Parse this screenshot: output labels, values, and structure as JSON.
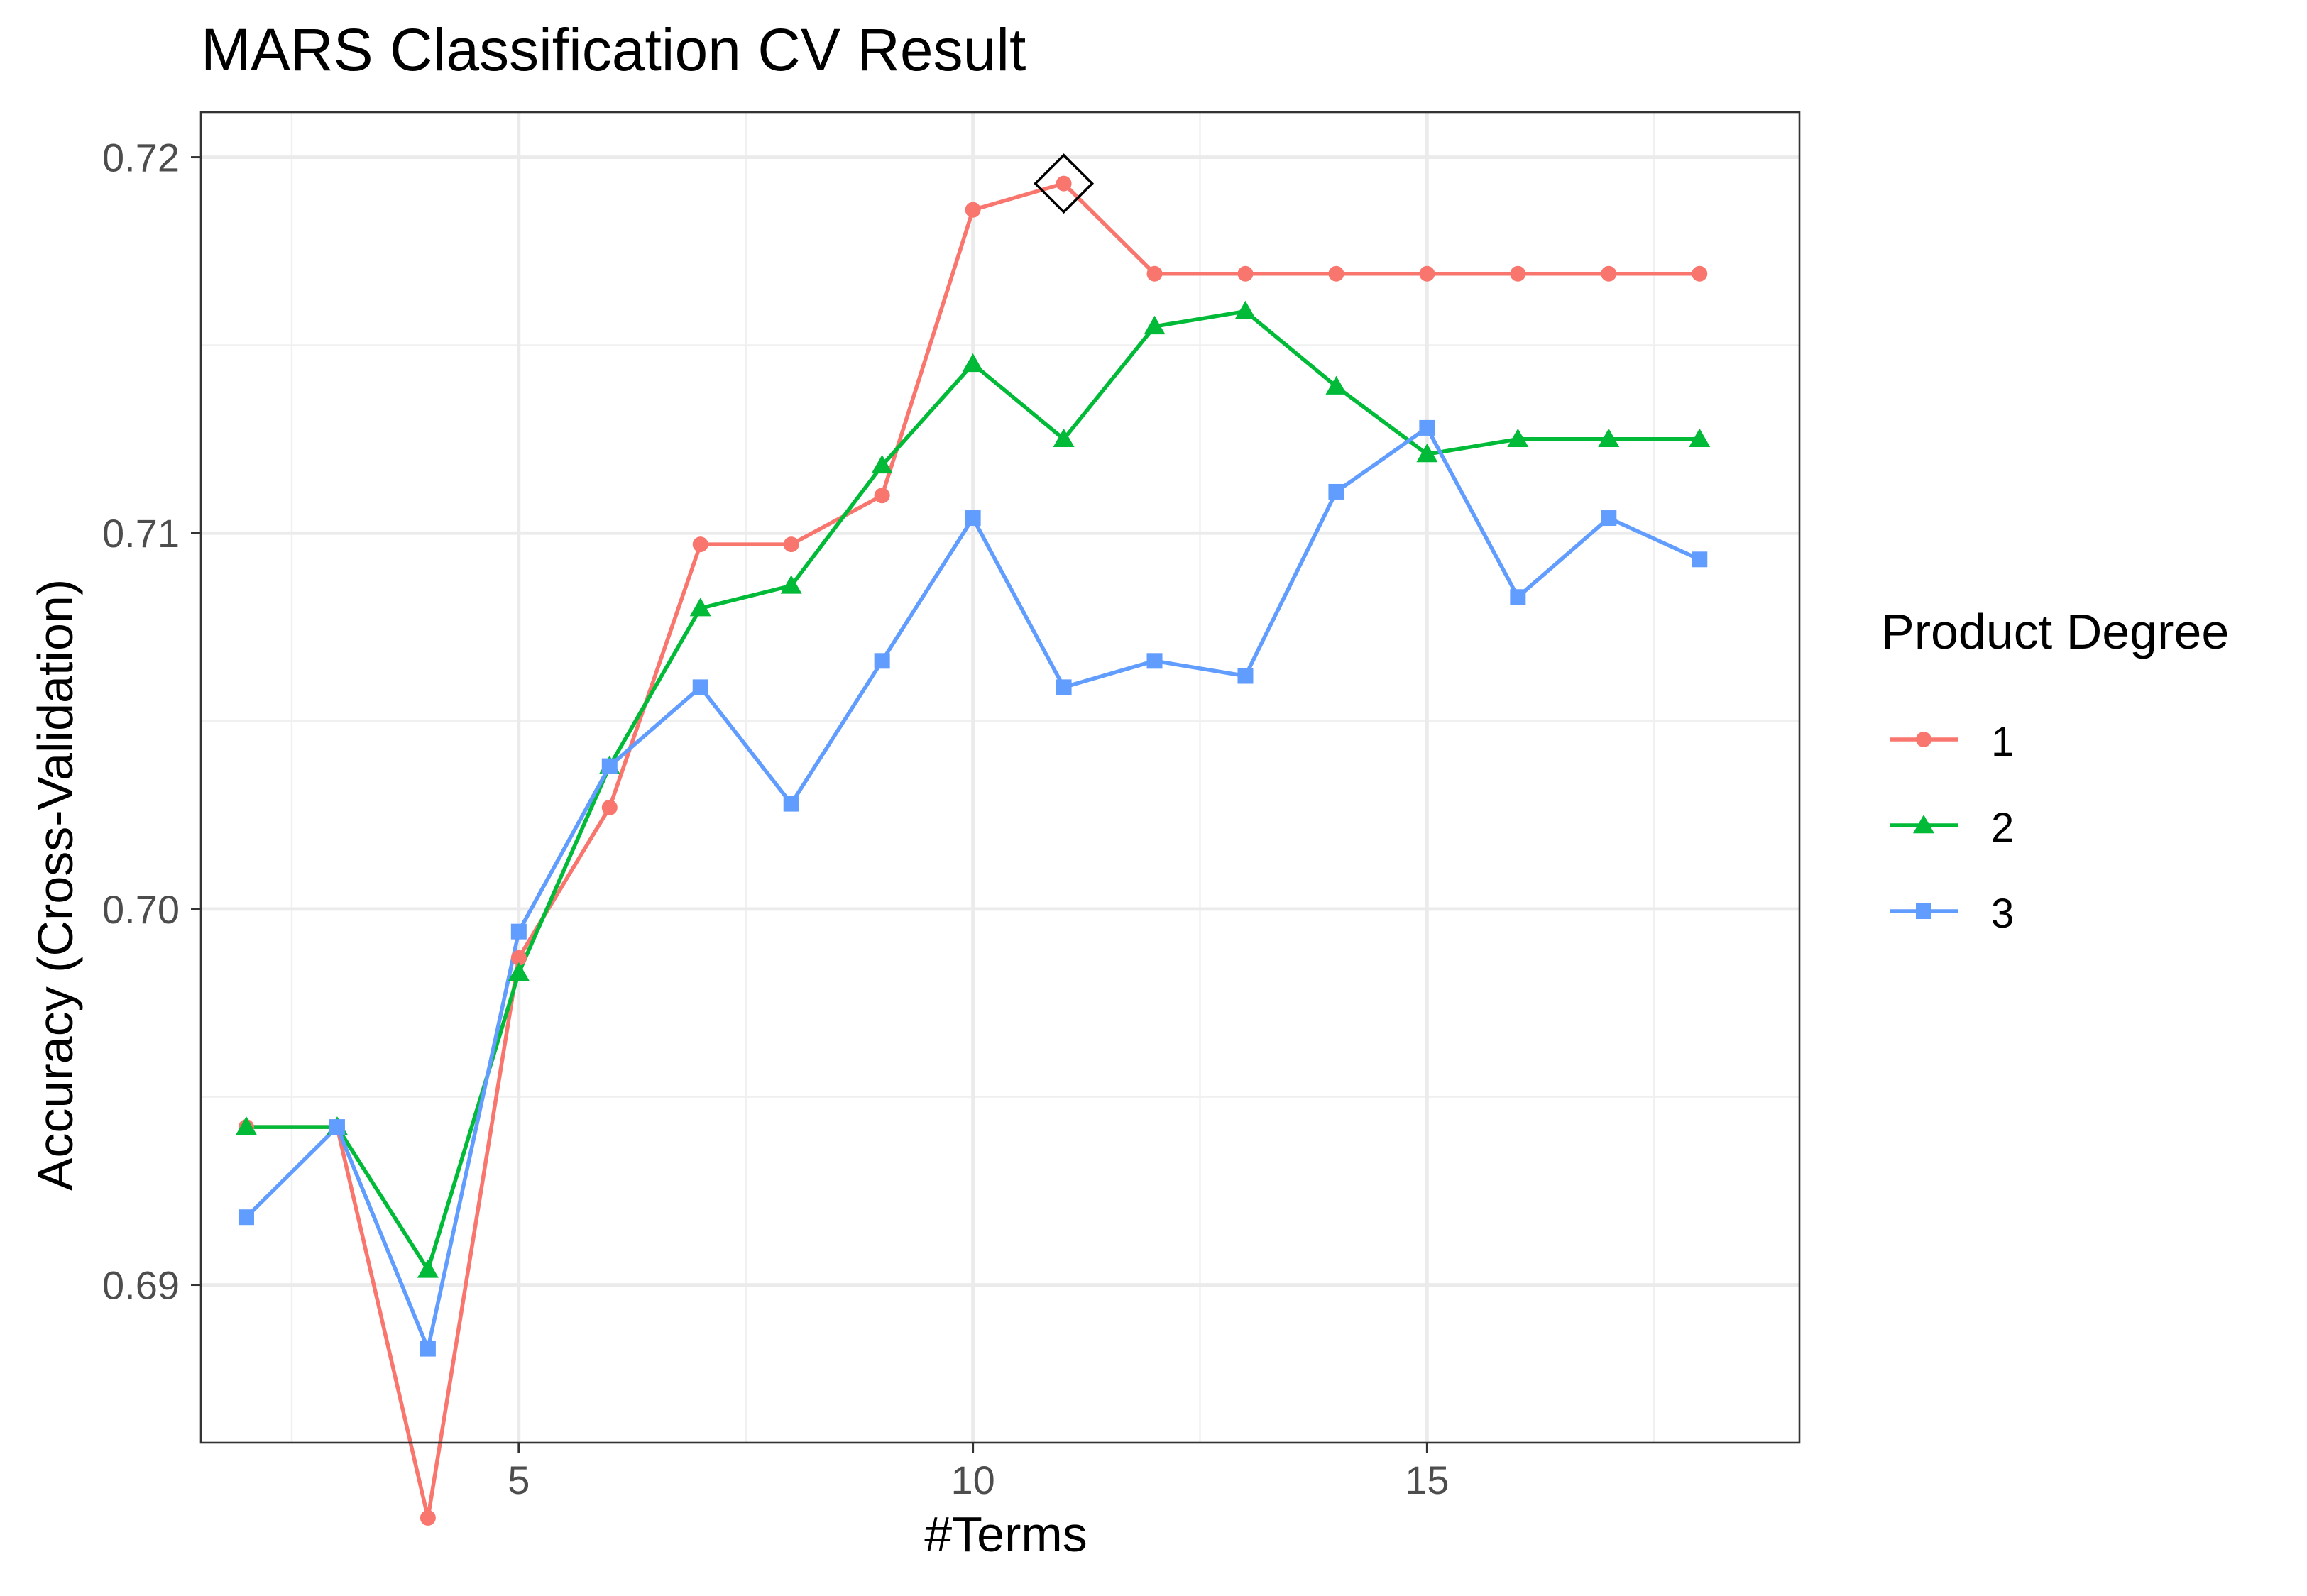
{
  "chart_data": {
    "type": "line",
    "title": "MARS Classification CV Result",
    "xlabel": "#Terms",
    "ylabel": "Accuracy (Cross-Validation)",
    "legend_title": "Product Degree",
    "legend_position": "right",
    "grid": true,
    "xlim": [
      1.5,
      19.1
    ],
    "ylim": [
      0.6858,
      0.7212
    ],
    "x_ticks": [
      5,
      10,
      15
    ],
    "y_ticks": [
      0.69,
      0.7,
      0.71,
      0.72
    ],
    "x_tick_labels": [
      "5",
      "10",
      "15"
    ],
    "y_tick_labels": [
      "0.69",
      "0.70",
      "0.71",
      "0.72"
    ],
    "x": [
      2,
      3,
      4,
      5,
      6,
      7,
      8,
      9,
      10,
      11,
      12,
      13,
      14,
      15,
      16,
      17,
      18
    ],
    "series": [
      {
        "name": "1",
        "color": "#F8766D",
        "marker": "circle",
        "values": [
          0.6942,
          0.6942,
          0.6838,
          0.6987,
          0.7027,
          0.7097,
          0.7097,
          0.711,
          0.7186,
          0.7193,
          0.7169,
          0.7169,
          0.7169,
          0.7169,
          0.7169,
          0.7169,
          0.7169
        ]
      },
      {
        "name": "2",
        "color": "#00BA38",
        "marker": "triangle",
        "values": [
          0.6942,
          0.6942,
          0.6904,
          0.6983,
          0.7038,
          0.708,
          0.7086,
          0.7118,
          0.7145,
          0.7125,
          0.7155,
          0.7159,
          0.7139,
          0.7121,
          0.7125,
          0.7125,
          0.7125
        ]
      },
      {
        "name": "3",
        "color": "#619CFF",
        "marker": "square",
        "values": [
          0.6918,
          0.6942,
          0.6883,
          0.6994,
          0.7038,
          0.7059,
          0.7028,
          0.7066,
          0.7104,
          0.7059,
          0.7066,
          0.7062,
          0.7111,
          0.7128,
          0.7083,
          0.7104,
          0.7093
        ]
      }
    ],
    "best": {
      "x": 11,
      "y": 0.7193,
      "marker": "diamond"
    }
  }
}
